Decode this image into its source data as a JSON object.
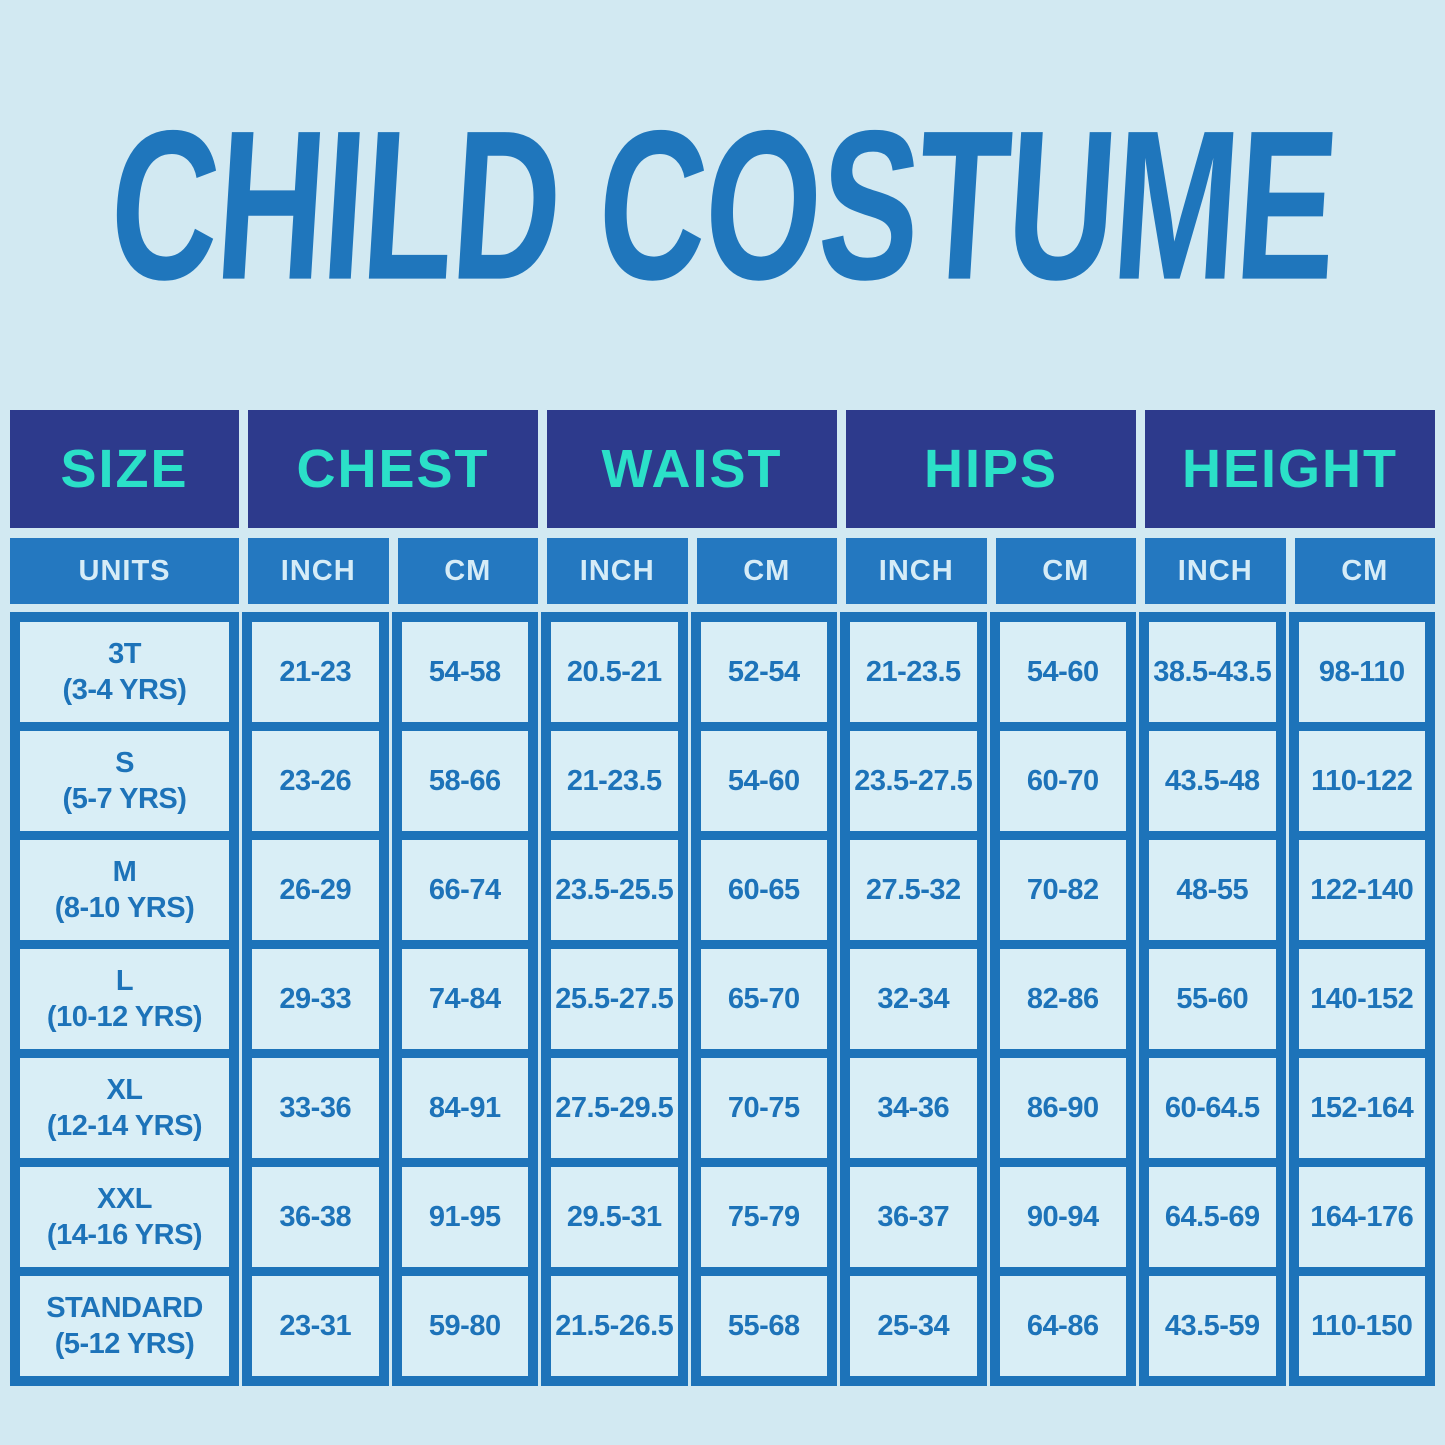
{
  "title": "CHILD COSTUME",
  "colors": {
    "background": "#d2e9f2",
    "header_navy": "#2d3a8c",
    "header_teal_text": "#2be0c8",
    "subheader_blue": "#2478c0",
    "subheader_text": "#d6ecf7",
    "grid_border_blue": "#1d73b9",
    "cell_background": "#d9eef6",
    "title_blue": "#1f76bc"
  },
  "chart_data": {
    "type": "table",
    "title": "CHILD COSTUME",
    "column_groups": [
      "SIZE",
      "CHEST",
      "WAIST",
      "HIPS",
      "HEIGHT"
    ],
    "unit_headers": [
      "UNITS",
      "INCH",
      "CM",
      "INCH",
      "CM",
      "INCH",
      "CM",
      "INCH",
      "CM"
    ],
    "rows": [
      {
        "size": "3T",
        "age": "(3-4 YRS)",
        "chest_inch": "21-23",
        "chest_cm": "54-58",
        "waist_inch": "20.5-21",
        "waist_cm": "52-54",
        "hips_inch": "21-23.5",
        "hips_cm": "54-60",
        "height_inch": "38.5-43.5",
        "height_cm": "98-110"
      },
      {
        "size": "S",
        "age": "(5-7 YRS)",
        "chest_inch": "23-26",
        "chest_cm": "58-66",
        "waist_inch": "21-23.5",
        "waist_cm": "54-60",
        "hips_inch": "23.5-27.5",
        "hips_cm": "60-70",
        "height_inch": "43.5-48",
        "height_cm": "110-122"
      },
      {
        "size": "M",
        "age": "(8-10 YRS)",
        "chest_inch": "26-29",
        "chest_cm": "66-74",
        "waist_inch": "23.5-25.5",
        "waist_cm": "60-65",
        "hips_inch": "27.5-32",
        "hips_cm": "70-82",
        "height_inch": "48-55",
        "height_cm": "122-140"
      },
      {
        "size": "L",
        "age": "(10-12 YRS)",
        "chest_inch": "29-33",
        "chest_cm": "74-84",
        "waist_inch": "25.5-27.5",
        "waist_cm": "65-70",
        "hips_inch": "32-34",
        "hips_cm": "82-86",
        "height_inch": "55-60",
        "height_cm": "140-152"
      },
      {
        "size": "XL",
        "age": "(12-14 YRS)",
        "chest_inch": "33-36",
        "chest_cm": "84-91",
        "waist_inch": "27.5-29.5",
        "waist_cm": "70-75",
        "hips_inch": "34-36",
        "hips_cm": "86-90",
        "height_inch": "60-64.5",
        "height_cm": "152-164"
      },
      {
        "size": "XXL",
        "age": "(14-16 YRS)",
        "chest_inch": "36-38",
        "chest_cm": "91-95",
        "waist_inch": "29.5-31",
        "waist_cm": "75-79",
        "hips_inch": "36-37",
        "hips_cm": "90-94",
        "height_inch": "64.5-69",
        "height_cm": "164-176"
      },
      {
        "size": "STANDARD",
        "age": "(5-12 YRS)",
        "chest_inch": "23-31",
        "chest_cm": "59-80",
        "waist_inch": "21.5-26.5",
        "waist_cm": "55-68",
        "hips_inch": "25-34",
        "hips_cm": "64-86",
        "height_inch": "43.5-59",
        "height_cm": "110-150"
      }
    ]
  }
}
